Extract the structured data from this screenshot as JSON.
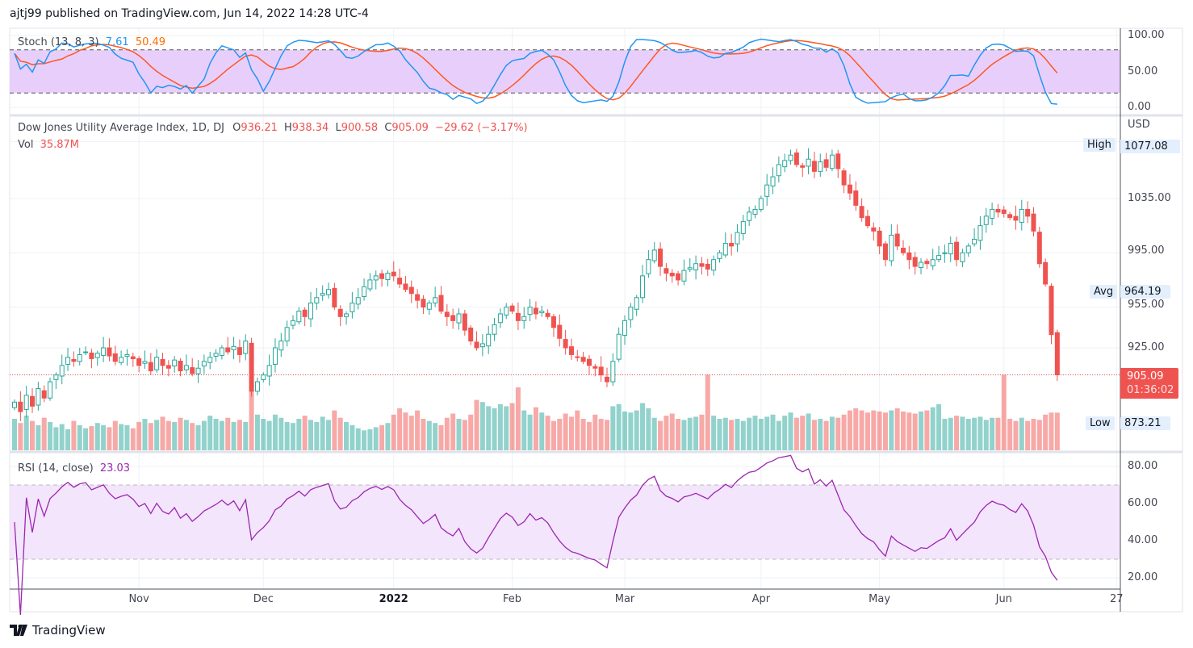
{
  "header": {
    "published": "ajtj99 published on TradingView.com, Jun 14, 2022 14:28 UTC-4"
  },
  "branding": {
    "logo_text": "TradingView"
  },
  "colors": {
    "up": "#26a69a",
    "down": "#ef5350",
    "stoch_k": "#2196f3",
    "stoch_d": "#ff5722",
    "rsi": "#9c27b0",
    "stoch_band": "#e8cffb",
    "rsi_band": "#f3e5fc"
  },
  "chart_data": {
    "type": "candlestick",
    "symbol": "Dow Jones Utility Average Index, 1D, DJ",
    "currency": "USD",
    "legend": {
      "o_label": "O",
      "o": "936.21",
      "h_label": "H",
      "h": "938.34",
      "l_label": "L",
      "l": "900.58",
      "c_label": "C",
      "c": "905.09",
      "change": "−29.62 (−3.17%)",
      "vol_label": "Vol",
      "vol": "35.87M"
    },
    "price_ticks": [
      "1035.00",
      "995.00",
      "955.00",
      "925.00"
    ],
    "price_tick_values": [
      1035,
      995,
      955,
      925
    ],
    "markers": {
      "high_label": "High",
      "high": "1077.08",
      "avg_label": "Avg",
      "avg": "964.19",
      "low_label": "Low",
      "low": "873.21",
      "last": "905.09",
      "countdown": "01:36:02"
    },
    "x_labels": [
      "Nov",
      "Dec",
      "2022",
      "Feb",
      "Mar",
      "Apr",
      "May",
      "Jun",
      "27"
    ],
    "x_label_bar_index": [
      21,
      42,
      64,
      84,
      103,
      126,
      146,
      167,
      186
    ],
    "ylim": [
      860,
      1085
    ],
    "closes": [
      885,
      878,
      890,
      882,
      895,
      888,
      900,
      905,
      912,
      918,
      915,
      920,
      922,
      917,
      921,
      925,
      919,
      915,
      918,
      920,
      917,
      912,
      915,
      908,
      918,
      912,
      910,
      916,
      908,
      912,
      906,
      910,
      915,
      918,
      921,
      925,
      922,
      926,
      920,
      930,
      893,
      900,
      905,
      912,
      925,
      930,
      940,
      945,
      952,
      948,
      958,
      962,
      965,
      968,
      955,
      948,
      950,
      958,
      962,
      970,
      975,
      978,
      976,
      980,
      978,
      972,
      968,
      965,
      960,
      955,
      958,
      962,
      952,
      948,
      945,
      950,
      938,
      930,
      925,
      928,
      935,
      942,
      950,
      955,
      952,
      945,
      948,
      955,
      950,
      952,
      948,
      940,
      932,
      925,
      920,
      918,
      915,
      912,
      910,
      905,
      900,
      915,
      935,
      945,
      955,
      962,
      978,
      990,
      997,
      985,
      980,
      978,
      975,
      982,
      984,
      987,
      985,
      983,
      990,
      995,
      1002,
      1000,
      1010,
      1018,
      1025,
      1027,
      1035,
      1045,
      1051,
      1060,
      1063,
      1067,
      1060,
      1058,
      1064,
      1055,
      1062,
      1058,
      1067,
      1057,
      1045,
      1039,
      1030,
      1021,
      1015,
      1011,
      1000,
      990,
      1008,
      1000,
      995,
      990,
      985,
      988,
      987,
      990,
      993,
      995,
      1002,
      990,
      995,
      1000,
      1005,
      1015,
      1022,
      1027,
      1025,
      1024,
      1021,
      1019,
      1027,
      1022,
      1011,
      987,
      972,
      934.71,
      905.09
    ],
    "last_open": 936.21,
    "last_high": 938.34,
    "last_low": 900.58,
    "volume_millions": [
      30,
      26,
      33,
      28,
      24,
      31,
      27,
      22,
      25,
      20,
      28,
      24,
      21,
      23,
      26,
      24,
      22,
      28,
      25,
      24,
      21,
      27,
      30,
      26,
      29,
      32,
      28,
      27,
      31,
      29,
      26,
      24,
      28,
      33,
      30,
      28,
      31,
      27,
      29,
      27,
      62,
      34,
      30,
      28,
      34,
      31,
      27,
      26,
      30,
      33,
      29,
      27,
      32,
      29,
      38,
      31,
      27,
      24,
      21,
      19,
      20,
      22,
      24,
      26,
      34,
      40,
      36,
      33,
      38,
      30,
      28,
      26,
      24,
      31,
      35,
      30,
      29,
      34,
      48,
      46,
      42,
      40,
      44,
      42,
      45,
      60,
      38,
      34,
      41,
      36,
      33,
      28,
      30,
      35,
      32,
      38,
      30,
      27,
      34,
      30,
      29,
      42,
      44,
      37,
      36,
      38,
      45,
      40,
      31,
      28,
      33,
      35,
      30,
      29,
      31,
      32,
      34,
      72,
      33,
      30,
      31,
      29,
      30,
      28,
      31,
      33,
      30,
      32,
      34,
      28,
      33,
      36,
      31,
      33,
      35,
      29,
      30,
      28,
      32,
      31,
      34,
      38,
      40,
      38,
      36,
      38,
      37,
      36,
      38,
      40,
      37,
      36,
      35,
      37,
      38,
      41,
      44,
      30,
      31,
      33,
      32,
      30,
      31,
      32,
      29,
      31,
      31,
      72,
      30,
      28,
      31,
      28,
      30,
      29,
      34,
      36,
      35.87
    ],
    "stoch": {
      "label": "Stoch (13, 8, 3)",
      "k_value": "7.61",
      "d_value": "50.49",
      "ticks": [
        "100.00",
        "50.00",
        "0.00"
      ],
      "tick_values": [
        100,
        50,
        0
      ],
      "bands": [
        80,
        20
      ]
    },
    "rsi": {
      "label": "RSI (14, close)",
      "value": "23.03",
      "ticks": [
        "80.00",
        "60.00",
        "40.00",
        "20.00"
      ],
      "tick_values": [
        80,
        60,
        40,
        20
      ],
      "bands": [
        70,
        30
      ]
    }
  }
}
